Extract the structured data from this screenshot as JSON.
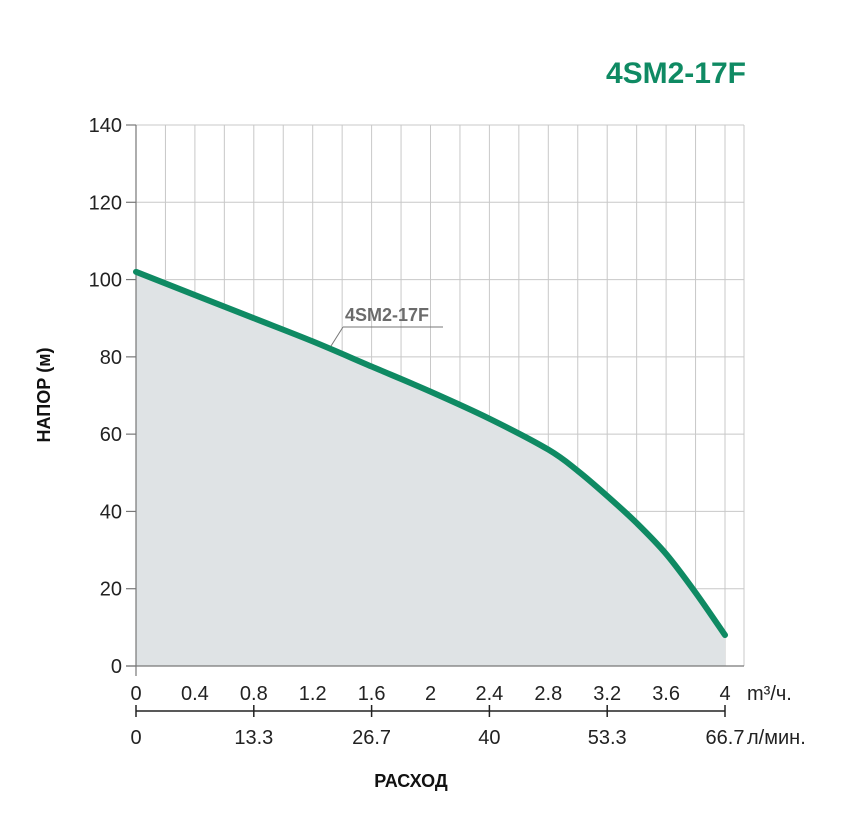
{
  "chart_data": {
    "type": "area",
    "title": "4SM2-17F",
    "ylabel": "НАПОР (м)",
    "xlabel": "РАСХОД",
    "ylim": [
      0,
      140
    ],
    "yticks": [
      "0",
      "20",
      "40",
      "60",
      "80",
      "100",
      "120",
      "140"
    ],
    "xlim": [
      0,
      4
    ],
    "xticks_primary": [
      "0",
      "0.4",
      "0.8",
      "1.2",
      "1.6",
      "2",
      "2.4",
      "2.8",
      "3.2",
      "3.6",
      "4"
    ],
    "x_unit_primary": "m³/ч.",
    "xticks_secondary": [
      "0",
      "13.3",
      "26.7",
      "40",
      "53.3",
      "66.7"
    ],
    "x_unit_secondary": "л/мин.",
    "grid": true,
    "series": [
      {
        "name": "4SM2-17F",
        "color": "#0f8a63",
        "fill": "#dfe3e5",
        "x": [
          0,
          0.4,
          0.8,
          1.2,
          1.6,
          2.0,
          2.4,
          2.8,
          3.0,
          3.2,
          3.4,
          3.6,
          3.8,
          4.0
        ],
        "y": [
          102,
          96,
          90,
          84,
          77.5,
          71,
          64,
          56,
          50.5,
          44,
          37,
          29,
          19,
          8
        ]
      }
    ]
  },
  "colors": {
    "accent": "#0f8a63",
    "grid": "#c8c8c8",
    "area": "#dfe3e5"
  }
}
